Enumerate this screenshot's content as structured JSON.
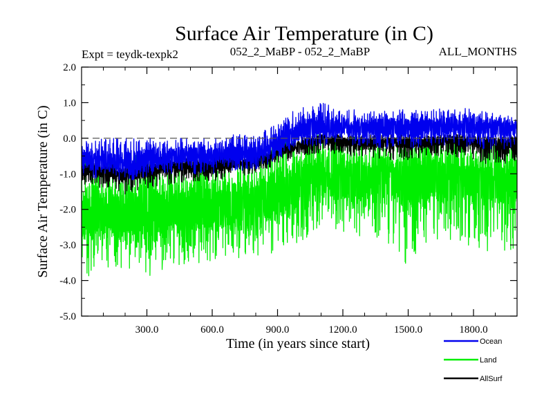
{
  "chart_data": {
    "type": "line",
    "title": "Surface Air Temperature (in C)",
    "subtitle_left": "Expt = teydk-texpk2",
    "subtitle_center": "052_2_MaBP - 052_2_MaBP",
    "subtitle_right": "ALL_MONTHS",
    "xlabel": "Time (in years since start)",
    "ylabel": "Surface Air Temperature (in C)",
    "xlim": [
      0,
      2000
    ],
    "ylim": [
      -5.0,
      2.0
    ],
    "x_ticks": [
      300,
      600,
      900,
      1200,
      1500,
      1800
    ],
    "x_tick_labels": [
      "300.0",
      "600.0",
      "900.0",
      "1200.0",
      "1500.0",
      "1800.0"
    ],
    "y_ticks": [
      -5,
      -4,
      -3,
      -2,
      -1,
      0,
      1,
      2
    ],
    "y_tick_labels": [
      "-5.0",
      "-4.0",
      "-3.0",
      "-2.0",
      "-1.0",
      "0.0",
      "1.0",
      "2.0"
    ],
    "reference_line": {
      "y": 0.0,
      "style": "dashed",
      "color": "#555555"
    },
    "series": [
      {
        "name": "Land",
        "color": "#00ee00",
        "x": [
          0,
          100,
          200,
          300,
          400,
          500,
          600,
          700,
          800,
          900,
          1000,
          1100,
          1200,
          1300,
          1400,
          1500,
          1600,
          1700,
          1800,
          1900,
          2000
        ],
        "mean": [
          -2.2,
          -2.1,
          -2.2,
          -2.1,
          -2.0,
          -2.0,
          -1.9,
          -1.9,
          -1.8,
          -1.6,
          -1.3,
          -1.0,
          -1.1,
          -1.1,
          -1.1,
          -1.1,
          -1.1,
          -1.0,
          -1.1,
          -1.1,
          -1.1
        ],
        "low": [
          -4.0,
          -3.6,
          -3.7,
          -3.9,
          -3.6,
          -3.5,
          -3.5,
          -3.4,
          -3.3,
          -3.2,
          -2.9,
          -2.6,
          -2.7,
          -2.8,
          -2.9,
          -3.6,
          -2.8,
          -2.9,
          -3.1,
          -3.2,
          -3.1
        ],
        "high": [
          -0.5,
          -0.6,
          -0.6,
          -0.3,
          -0.5,
          -0.5,
          -0.4,
          -0.4,
          -0.3,
          0.0,
          0.2,
          0.2,
          0.1,
          0.0,
          -0.1,
          0.0,
          0.0,
          -0.1,
          -0.1,
          -0.1,
          -0.1
        ]
      },
      {
        "name": "AllSurf",
        "color": "#000000",
        "x": [
          0,
          100,
          200,
          300,
          400,
          500,
          600,
          700,
          800,
          900,
          1000,
          1100,
          1200,
          1300,
          1400,
          1500,
          1600,
          1700,
          1800,
          1900,
          2000
        ],
        "mean": [
          -0.9,
          -0.9,
          -1.0,
          -0.9,
          -0.8,
          -0.8,
          -0.8,
          -0.7,
          -0.7,
          -0.4,
          -0.2,
          0.0,
          -0.1,
          -0.1,
          -0.1,
          -0.1,
          -0.1,
          0.0,
          -0.1,
          -0.1,
          -0.1
        ],
        "low": [
          -1.3,
          -1.4,
          -1.6,
          -1.4,
          -1.3,
          -1.2,
          -1.2,
          -1.1,
          -1.0,
          -0.8,
          -0.5,
          -0.4,
          -0.5,
          -0.5,
          -0.6,
          -0.6,
          -0.5,
          -0.5,
          -0.6,
          -0.9,
          -0.6
        ],
        "high": [
          -0.6,
          -0.6,
          -0.7,
          -0.6,
          -0.5,
          -0.5,
          -0.5,
          -0.4,
          -0.4,
          -0.2,
          0.0,
          0.2,
          0.1,
          0.1,
          0.1,
          0.1,
          0.1,
          0.1,
          0.1,
          0.0,
          0.1
        ]
      },
      {
        "name": "Ocean",
        "color": "#0000ee",
        "x": [
          0,
          100,
          200,
          300,
          400,
          500,
          600,
          700,
          800,
          900,
          1000,
          1100,
          1200,
          1300,
          1400,
          1500,
          1600,
          1700,
          1800,
          1900,
          2000
        ],
        "mean": [
          -0.6,
          -0.6,
          -0.7,
          -0.6,
          -0.5,
          -0.5,
          -0.5,
          -0.4,
          -0.4,
          -0.1,
          0.2,
          0.3,
          0.3,
          0.3,
          0.3,
          0.3,
          0.3,
          0.4,
          0.3,
          0.3,
          0.3
        ],
        "low": [
          -1.2,
          -1.1,
          -1.2,
          -1.1,
          -1.0,
          -1.0,
          -1.0,
          -0.9,
          -0.9,
          -0.6,
          -0.3,
          -0.2,
          -0.2,
          -0.2,
          -0.3,
          -0.3,
          -0.2,
          -0.2,
          -0.3,
          -0.3,
          -0.3
        ],
        "high": [
          -0.1,
          0.0,
          0.0,
          0.0,
          0.0,
          0.0,
          0.0,
          0.1,
          0.1,
          0.4,
          0.9,
          1.0,
          0.8,
          0.8,
          0.8,
          0.8,
          0.8,
          0.9,
          0.8,
          0.7,
          0.6
        ]
      }
    ],
    "legend": {
      "position": "bottom-right",
      "entries": [
        {
          "label": "Ocean",
          "color": "#0000ee"
        },
        {
          "label": "Land",
          "color": "#00ee00"
        },
        {
          "label": "AllSurf",
          "color": "#000000"
        }
      ]
    }
  }
}
